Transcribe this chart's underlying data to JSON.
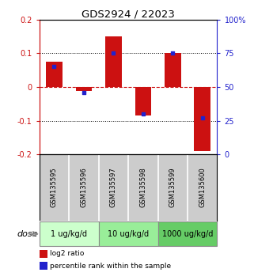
{
  "title": "GDS2924 / 22023",
  "samples": [
    "GSM135595",
    "GSM135596",
    "GSM135597",
    "GSM135598",
    "GSM135599",
    "GSM135600"
  ],
  "log2_ratios": [
    0.075,
    -0.012,
    0.15,
    -0.085,
    0.102,
    -0.19
  ],
  "percentile_ranks": [
    0.65,
    0.46,
    0.75,
    0.3,
    0.75,
    0.27
  ],
  "dose_groups": [
    {
      "label": "1 ug/kg/d",
      "samples": [
        0,
        1
      ],
      "color": "#ccffcc"
    },
    {
      "label": "10 ug/kg/d",
      "samples": [
        2,
        3
      ],
      "color": "#99ee99"
    },
    {
      "label": "1000 ug/kg/d",
      "samples": [
        4,
        5
      ],
      "color": "#66cc66"
    }
  ],
  "ylim": [
    -0.2,
    0.2
  ],
  "y2lim": [
    0,
    100
  ],
  "bar_color": "#cc1111",
  "dot_color": "#2222cc",
  "dotted_line_color": "#222222",
  "zero_line_color": "#cc1111",
  "left_tick_color": "#cc1111",
  "right_tick_color": "#2222cc",
  "yticks_left": [
    -0.2,
    -0.1,
    0.0,
    0.1,
    0.2
  ],
  "yticks_right": [
    0,
    25,
    50,
    75,
    100
  ],
  "sample_bg_color": "#cccccc",
  "dose_arrow_text": "dose",
  "legend_red_label": "log2 ratio",
  "legend_blue_label": "percentile rank within the sample"
}
